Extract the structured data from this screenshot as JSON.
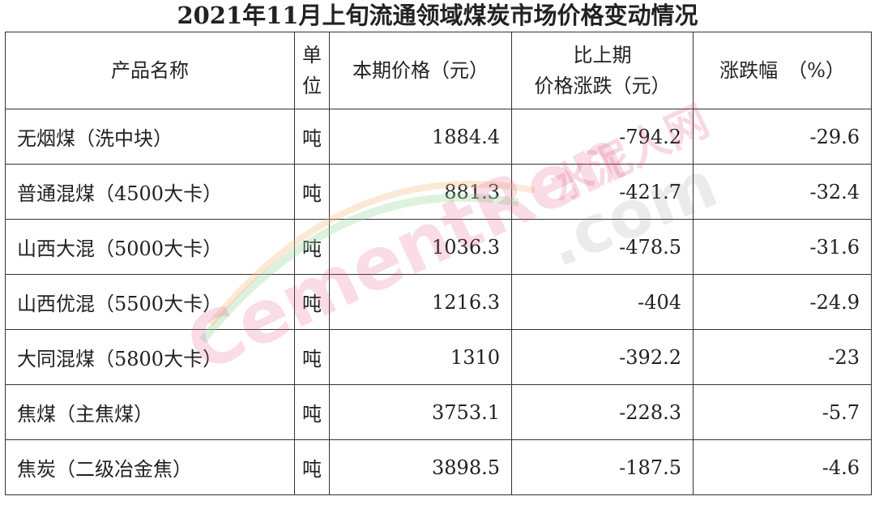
{
  "title": "2021年11月上旬流通领域煤炭市场价格变动情况",
  "columns": [
    "产品名称",
    "单位",
    "本期价格（元）",
    "比上期价格涨跌（元）",
    "涨跌幅　（%）"
  ],
  "header_lines": {
    "unit": [
      "单",
      "位"
    ],
    "change": [
      "比上期",
      "价格涨跌（元）"
    ]
  },
  "rows": [
    {
      "name": "无烟煤（洗中块）",
      "unit": "吨",
      "price": "1884.4",
      "change": "-794.2",
      "pct": "-29.6"
    },
    {
      "name": "普通混煤（4500大卡）",
      "unit": "吨",
      "price": "881.3",
      "change": "-421.7",
      "pct": "-32.4"
    },
    {
      "name": "山西大混（5000大卡）",
      "unit": "吨",
      "price": "1036.3",
      "change": "-478.5",
      "pct": "-31.6"
    },
    {
      "name": "山西优混（5500大卡）",
      "unit": "吨",
      "price": "1216.3",
      "change": "-404",
      "pct": "-24.9"
    },
    {
      "name": "大同混煤（5800大卡）",
      "unit": "吨",
      "price": "1310",
      "change": "-392.2",
      "pct": "-23"
    },
    {
      "name": "焦煤（主焦煤）",
      "unit": "吨",
      "price": "3753.1",
      "change": "-228.3",
      "pct": "-5.7"
    },
    {
      "name": "焦炭（二级冶金焦）",
      "unit": "吨",
      "price": "3898.5",
      "change": "-187.5",
      "pct": "-4.6"
    }
  ],
  "watermark": {
    "cn": "水泥人网",
    "en": "CementRen",
    "suffix": ".com",
    "color": "#e0447a"
  }
}
